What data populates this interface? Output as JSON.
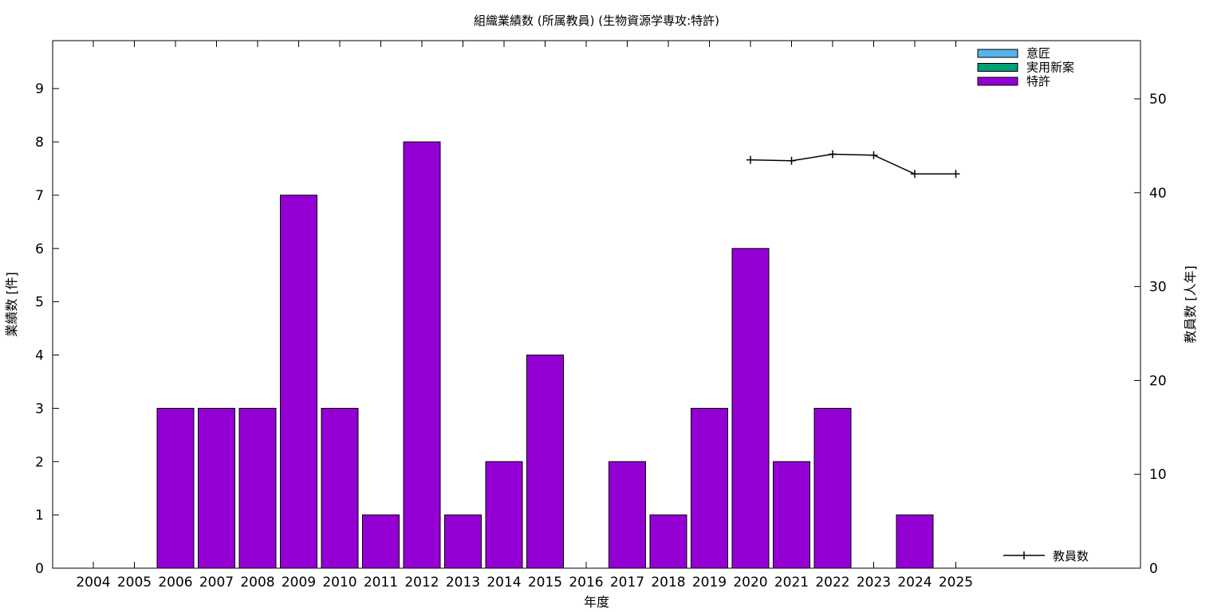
{
  "chart_data": {
    "type": "bar",
    "title": "組織業績数 (所属教員) (生物資源学専攻:特許)",
    "xlabel": "年度",
    "ylabel": "業績数 [件]",
    "y2label": "教員数 [人年]",
    "categories": [
      "2004",
      "2005",
      "2006",
      "2007",
      "2008",
      "2009",
      "2010",
      "2011",
      "2012",
      "2013",
      "2014",
      "2015",
      "2016",
      "2017",
      "2018",
      "2019",
      "2020",
      "2021",
      "2022",
      "2023",
      "2024",
      "2025"
    ],
    "ylim": [
      0,
      9.9
    ],
    "yticks": [
      0,
      1,
      2,
      3,
      4,
      5,
      6,
      7,
      8,
      9
    ],
    "y2lim": [
      0,
      56.2
    ],
    "y2ticks": [
      0,
      10,
      20,
      30,
      40,
      50
    ],
    "legend_position": "top-right",
    "series": [
      {
        "name": "意匠",
        "type": "bar",
        "color": "#56b4e9",
        "values": [
          0,
          0,
          0,
          0,
          0,
          0,
          0,
          0,
          0,
          0,
          0,
          0,
          0,
          0,
          0,
          0,
          0,
          0,
          0,
          0,
          0,
          0
        ]
      },
      {
        "name": "実用新案",
        "type": "bar",
        "color": "#009e73",
        "values": [
          0,
          0,
          0,
          0,
          0,
          0,
          0,
          0,
          0,
          0,
          0,
          0,
          0,
          0,
          0,
          0,
          0,
          0,
          0,
          0,
          0,
          0
        ]
      },
      {
        "name": "特許",
        "type": "bar",
        "color": "#9400d3",
        "values": [
          0,
          0,
          3,
          3,
          3,
          7,
          3,
          1,
          8,
          1,
          2,
          4,
          0,
          2,
          1,
          3,
          6,
          2,
          3,
          0,
          1,
          0
        ]
      },
      {
        "name": "教員数",
        "type": "line",
        "axis": "y2",
        "color": "#000000",
        "x": [
          "2020",
          "2021",
          "2022",
          "2023",
          "2024",
          "2025"
        ],
        "values": [
          43.5,
          43.4,
          44.1,
          44.0,
          42.0,
          42.0
        ]
      }
    ]
  }
}
